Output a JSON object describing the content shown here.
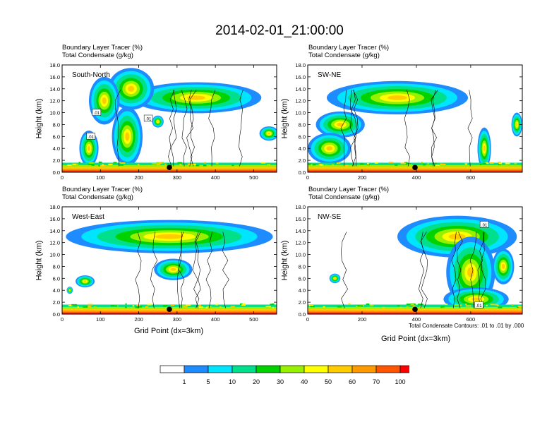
{
  "main_title": "2014-02-01_21:00:00",
  "palette": [
    "#ffffff",
    "#1e8cff",
    "#00e5ff",
    "#00e08c",
    "#00d200",
    "#96f000",
    "#ffff00",
    "#ffcc00",
    "#ff9900",
    "#ff5500",
    "#ff0000"
  ],
  "colorbar": {
    "labels": [
      "1",
      "5",
      "10",
      "20",
      "30",
      "40",
      "50",
      "60",
      "70",
      "100"
    ]
  },
  "footer_note": "Total Condensate Contours: .01 to .01 by .000",
  "chart_data": [
    {
      "type": "heatmap",
      "name": "South-North",
      "title_line1": "Boundary Layer Tracer    (%)",
      "title_line2": "Total Condensate    (g/kg)",
      "ylabel": "Height (km)",
      "xlabel": "",
      "xlim": [
        0,
        560
      ],
      "ylim": [
        0,
        18
      ],
      "xticks": [
        "0",
        "100",
        "200",
        "300",
        "400",
        "500"
      ],
      "yticks": [
        "0.0",
        "2.0",
        "4.0",
        "6.0",
        "8.0",
        "10.0",
        "12.0",
        "14.0",
        "16.0",
        "18.0"
      ],
      "marker_x": 280,
      "contour_labels": [
        {
          "text": ".01",
          "x": 90,
          "y": 10
        },
        {
          "text": ".01",
          "x": 75,
          "y": 6
        },
        {
          "text": ".01",
          "x": 225,
          "y": 9
        }
      ]
    },
    {
      "type": "heatmap",
      "name": "SW-NE",
      "title_line1": "Boundary Layer Tracer    (%)",
      "title_line2": "Total Condensate    (g/kg)",
      "ylabel": "Height (km)",
      "xlabel": "",
      "xlim": [
        0,
        790
      ],
      "ylim": [
        0,
        18
      ],
      "xticks": [
        "0",
        "200",
        "400",
        "600"
      ],
      "yticks": [
        "0.0",
        "2.0",
        "4.0",
        "6.0",
        "8.0",
        "10.0",
        "12.0",
        "14.0",
        "16.0",
        "18.0"
      ],
      "marker_x": 395,
      "contour_labels": []
    },
    {
      "type": "heatmap",
      "name": "West-East",
      "title_line1": "Boundary Layer Tracer    (%)",
      "title_line2": "Total Condensate    (g/kg)",
      "ylabel": "Height (km)",
      "xlabel": "Grid Point (dx=3km)",
      "xlim": [
        0,
        560
      ],
      "ylim": [
        0,
        18
      ],
      "xticks": [
        "0",
        "100",
        "200",
        "300",
        "400",
        "500"
      ],
      "yticks": [
        "0.0",
        "2.0",
        "4.0",
        "6.0",
        "8.0",
        "10.0",
        "12.0",
        "14.0",
        "16.0",
        "18.0"
      ],
      "marker_x": 280,
      "contour_labels": []
    },
    {
      "type": "heatmap",
      "name": "NW-SE",
      "title_line1": "Boundary Layer Tracer    (%)",
      "title_line2": "Total Condensate    (g/kg)",
      "ylabel": "Height (km)",
      "xlabel": "Grid Point (dx=3km)",
      "xlim": [
        0,
        790
      ],
      "ylim": [
        0,
        18
      ],
      "xticks": [
        "0",
        "200",
        "400",
        "600"
      ],
      "yticks": [
        "0.0",
        "2.0",
        "4.0",
        "6.0",
        "8.0",
        "10.0",
        "12.0",
        "14.0",
        "16.0",
        "18.0"
      ],
      "marker_x": 395,
      "contour_labels": [
        {
          "text": ".01",
          "x": 650,
          "y": 15
        },
        {
          "text": ".01",
          "x": 630,
          "y": 1.5
        }
      ]
    }
  ]
}
